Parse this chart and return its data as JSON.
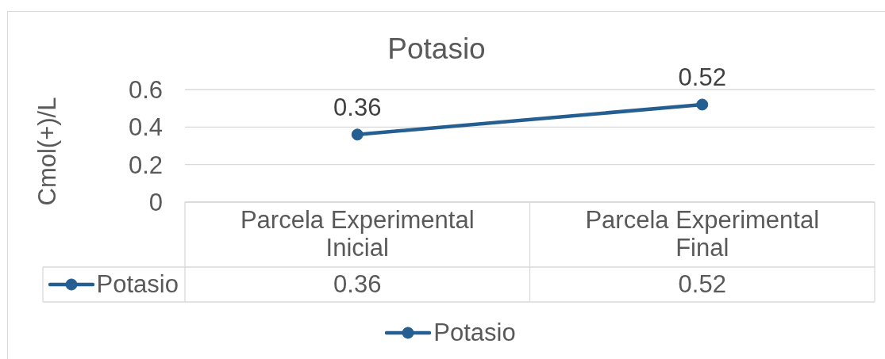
{
  "chart_data": {
    "type": "line",
    "title": "Potasio",
    "ylabel": "Cmol(+)/L",
    "categories": [
      "Parcela Experimental Inicial",
      "Parcela Experimental Final"
    ],
    "series": [
      {
        "name": "Potasio",
        "color": "#255e91",
        "values": [
          0.36,
          0.52
        ]
      }
    ],
    "ylim": [
      0,
      0.6
    ],
    "yticks": [
      0,
      0.2,
      0.4,
      0.6
    ],
    "grid": "y",
    "legend": "bottom",
    "marker": "circle",
    "line_style": "solid",
    "data_labels": true,
    "annotations": [
      "0.36",
      "0.52"
    ]
  }
}
